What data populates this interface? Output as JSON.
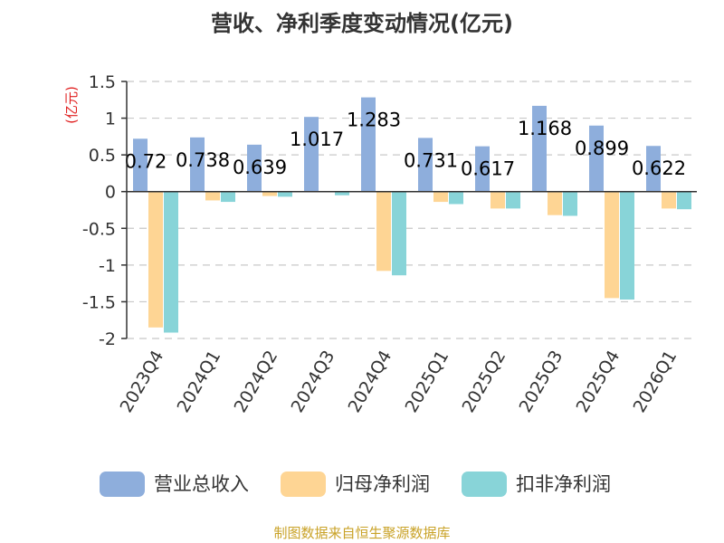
{
  "chart_data": {
    "type": "bar",
    "title": "营收、净利季度变动情况(亿元)",
    "unit_label": "(亿元)",
    "categories": [
      "2023Q4",
      "2024Q1",
      "2024Q2",
      "2024Q3",
      "2024Q4",
      "2025Q1",
      "2025Q2",
      "2025Q3",
      "2025Q4",
      "2026Q1"
    ],
    "series": [
      {
        "name": "营业总收入",
        "color": "#8eaedc",
        "values": [
          0.72,
          0.738,
          0.639,
          1.017,
          1.283,
          0.731,
          0.617,
          1.168,
          0.899,
          0.622
        ]
      },
      {
        "name": "归母净利润",
        "color": "#fed594",
        "values": [
          -1.85,
          -0.12,
          -0.06,
          0.0,
          -1.08,
          -0.14,
          -0.23,
          -0.32,
          -1.45,
          -0.23
        ]
      },
      {
        "name": "扣非净利润",
        "color": "#88d4d8",
        "values": [
          -1.92,
          -0.14,
          -0.07,
          -0.05,
          -1.14,
          -0.17,
          -0.23,
          -0.33,
          -1.47,
          -0.24
        ]
      }
    ],
    "data_labels": [
      "0.72",
      "0.738",
      "0.639",
      "1.017",
      "1.283",
      "0.731",
      "0.617",
      "1.168",
      "0.899",
      "0.622"
    ],
    "yticks": [
      "1.5",
      "1",
      "0.5",
      "0",
      "-0.5",
      "-1",
      "-1.5",
      "-2"
    ],
    "ytick_values": [
      1.5,
      1,
      0.5,
      0,
      -0.5,
      -1,
      -1.5,
      -2
    ],
    "ylim": [
      -2,
      1.5
    ],
    "grid": true,
    "legend_position": "bottom"
  },
  "source_text": "制图数据来自恒生聚源数据库"
}
